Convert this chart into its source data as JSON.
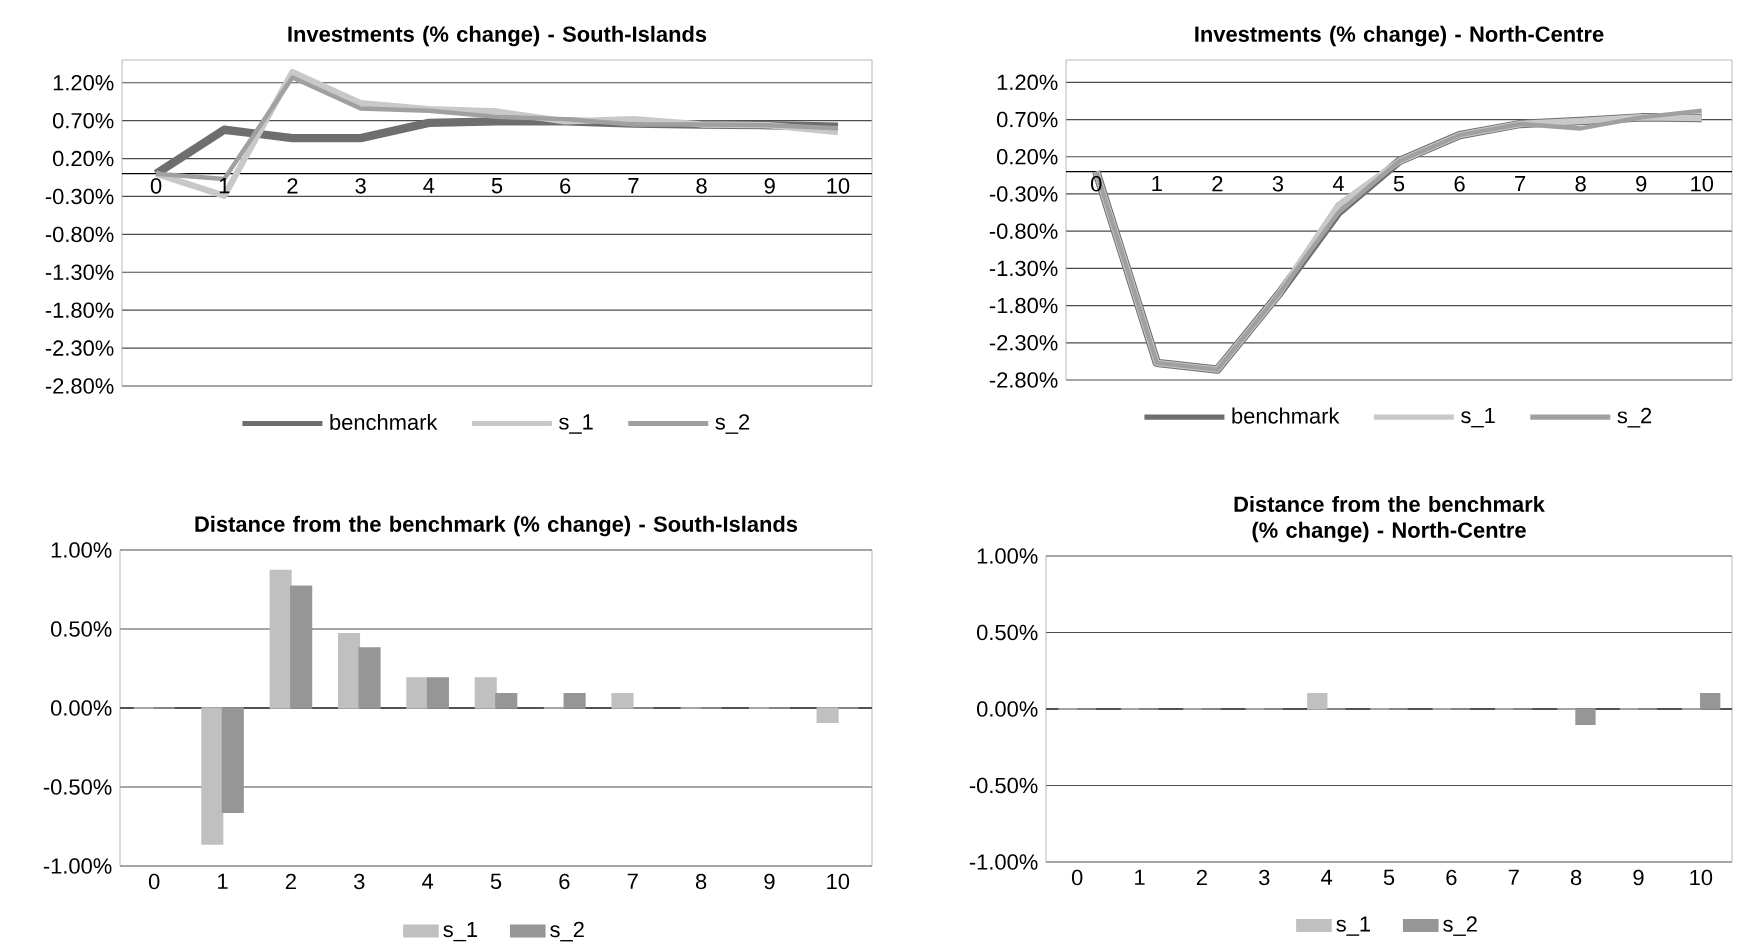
{
  "chart_data": [
    {
      "type": "line",
      "title": "Investments (% change) - South-Islands",
      "categories": [
        "0",
        "1",
        "2",
        "3",
        "4",
        "5",
        "6",
        "7",
        "8",
        "9",
        "10"
      ],
      "series": [
        {
          "name": "benchmark",
          "color": "#6e6e6e",
          "values": [
            0,
            0.58,
            0.47,
            0.47,
            0.67,
            0.69,
            0.69,
            0.66,
            0.65,
            0.64,
            0.62
          ]
        },
        {
          "name": "s_1",
          "color": "#c8c8c8",
          "values": [
            0,
            -0.29,
            1.34,
            0.93,
            0.85,
            0.82,
            0.69,
            0.72,
            0.65,
            0.64,
            0.55
          ]
        },
        {
          "name": "s_2",
          "color": "#a0a0a0",
          "values": [
            0,
            -0.07,
            1.27,
            0.86,
            0.83,
            0.75,
            0.72,
            0.65,
            0.65,
            0.64,
            0.6
          ]
        }
      ],
      "ylim": [
        -2.8,
        1.5
      ],
      "yticks": [
        {
          "value": -2.8,
          "label": "-2.80%"
        },
        {
          "value": -2.3,
          "label": "-2.30%"
        },
        {
          "value": -1.8,
          "label": "-1.80%"
        },
        {
          "value": -1.3,
          "label": "-1.30%"
        },
        {
          "value": -0.8,
          "label": "-0.80%"
        },
        {
          "value": -0.3,
          "label": "-0.30%"
        },
        {
          "value": 0.2,
          "label": "0.20%"
        },
        {
          "value": 0.7,
          "label": "0.70%"
        },
        {
          "value": 1.2,
          "label": "1.20%"
        }
      ],
      "grid": "y",
      "legend": "bottom"
    },
    {
      "type": "line",
      "title": "Investments (% change) - North-Centre",
      "categories": [
        "0",
        "1",
        "2",
        "3",
        "4",
        "5",
        "6",
        "7",
        "8",
        "9",
        "10"
      ],
      "series": [
        {
          "name": "benchmark",
          "color": "#6e6e6e",
          "values": [
            0,
            -2.57,
            -2.66,
            -1.66,
            -0.55,
            0.14,
            0.49,
            0.64,
            0.68,
            0.73,
            0.72
          ]
        },
        {
          "name": "s_1",
          "color": "#c8c8c8",
          "values": [
            0,
            -2.57,
            -2.66,
            -1.66,
            -0.45,
            0.14,
            0.49,
            0.64,
            0.68,
            0.73,
            0.72
          ]
        },
        {
          "name": "s_2",
          "color": "#a0a0a0",
          "values": [
            0,
            -2.57,
            -2.66,
            -1.66,
            -0.55,
            0.14,
            0.49,
            0.64,
            0.58,
            0.73,
            0.82
          ]
        }
      ],
      "ylim": [
        -2.8,
        1.5
      ],
      "yticks": [
        {
          "value": -2.8,
          "label": "-2.80%"
        },
        {
          "value": -2.3,
          "label": "-2.30%"
        },
        {
          "value": -1.8,
          "label": "-1.80%"
        },
        {
          "value": -1.3,
          "label": "-1.30%"
        },
        {
          "value": -0.8,
          "label": "-0.80%"
        },
        {
          "value": -0.3,
          "label": "-0.30%"
        },
        {
          "value": 0.2,
          "label": "0.20%"
        },
        {
          "value": 0.7,
          "label": "0.70%"
        },
        {
          "value": 1.2,
          "label": "1.20%"
        }
      ],
      "grid": "y",
      "legend": "bottom"
    },
    {
      "type": "bar",
      "title": "Distance from the benchmark (% change) - South-Islands",
      "categories": [
        "0",
        "1",
        "2",
        "3",
        "4",
        "5",
        "6",
        "7",
        "8",
        "9",
        "10"
      ],
      "series": [
        {
          "name": "s_1",
          "color": "#c0c0c0",
          "values": [
            0,
            -0.86,
            0.87,
            0.47,
            0.19,
            0.19,
            0,
            0.09,
            0,
            0,
            -0.09
          ]
        },
        {
          "name": "s_2",
          "color": "#969696",
          "values": [
            0,
            -0.66,
            0.77,
            0.38,
            0.19,
            0.09,
            0.09,
            0,
            0,
            0,
            0
          ]
        }
      ],
      "ylim": [
        -1,
        1
      ],
      "yticks": [
        {
          "value": -1,
          "label": "-1.00%"
        },
        {
          "value": -0.5,
          "label": "-0.50%"
        },
        {
          "value": 0,
          "label": "0.00%"
        },
        {
          "value": 0.5,
          "label": "0.50%"
        },
        {
          "value": 1,
          "label": "1.00%"
        }
      ],
      "grid": "y",
      "legend": "bottom"
    },
    {
      "type": "bar",
      "title": "Distance from the benchmark (% change) - North-Centre",
      "categories": [
        "0",
        "1",
        "2",
        "3",
        "4",
        "5",
        "6",
        "7",
        "8",
        "9",
        "10"
      ],
      "series": [
        {
          "name": "s_1",
          "color": "#c0c0c0",
          "values": [
            0,
            0,
            0,
            0,
            0.1,
            0,
            0,
            0,
            0,
            0,
            0
          ]
        },
        {
          "name": "s_2",
          "color": "#969696",
          "values": [
            0,
            0,
            0,
            0,
            0,
            0,
            0,
            0,
            -0.1,
            0,
            0.1
          ]
        }
      ],
      "ylim": [
        -1,
        1
      ],
      "yticks": [
        {
          "value": -1,
          "label": "-1.00%"
        },
        {
          "value": -0.5,
          "label": "-0.50%"
        },
        {
          "value": 0,
          "label": "0.00%"
        },
        {
          "value": 0.5,
          "label": "0.50%"
        },
        {
          "value": 1,
          "label": "1.00%"
        }
      ],
      "grid": "y",
      "legend": "bottom"
    }
  ]
}
